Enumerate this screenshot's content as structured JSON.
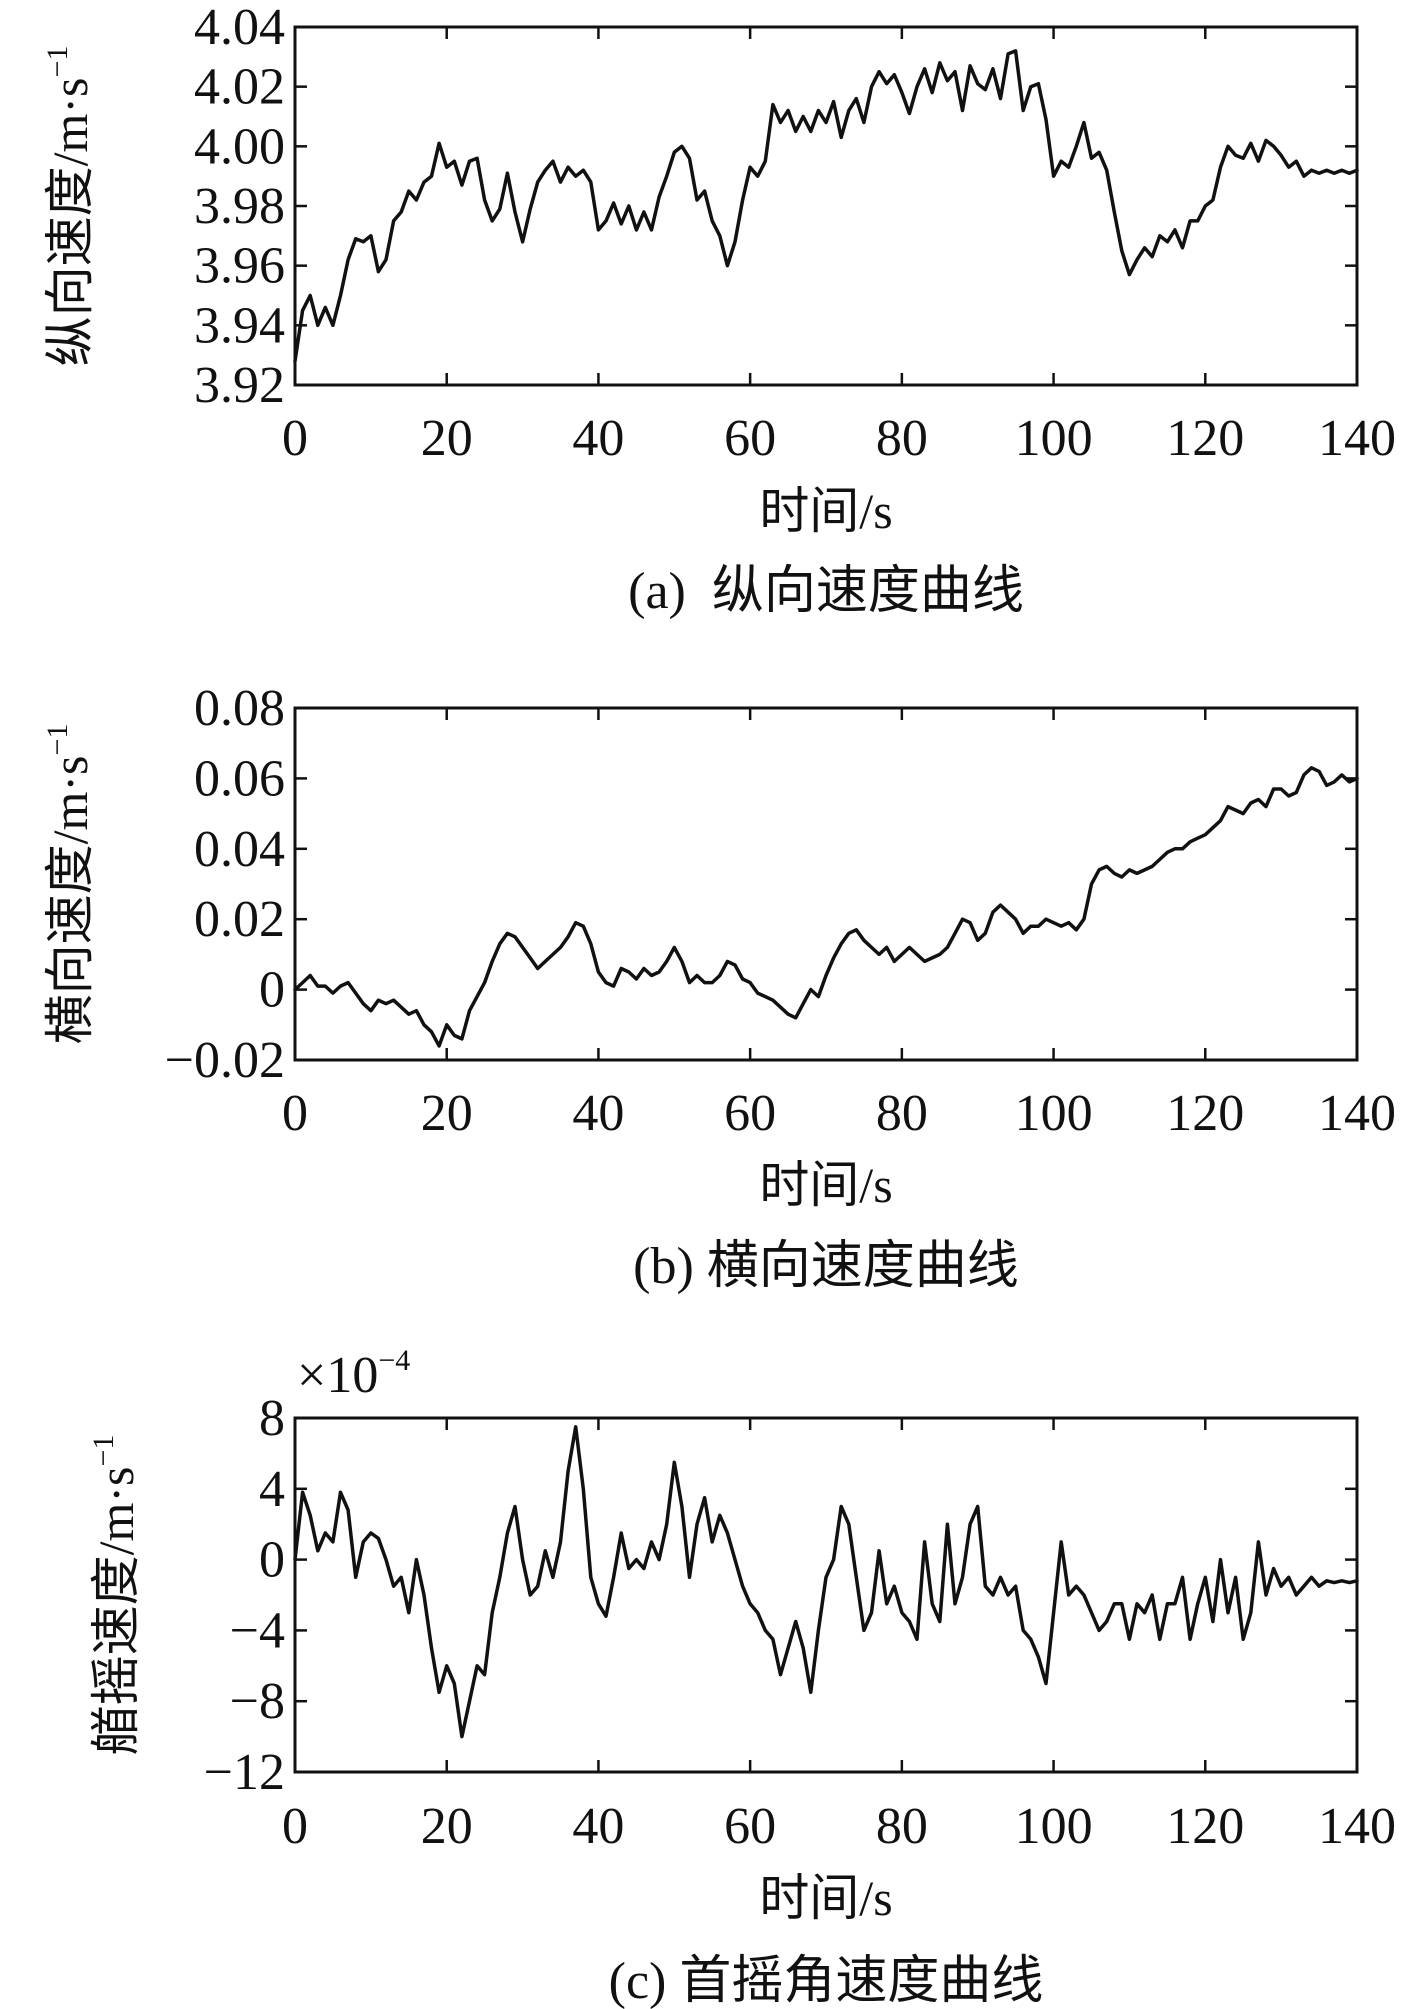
{
  "chart_data": [
    {
      "type": "line",
      "caption": "(a)  纵向速度曲线",
      "xlabel": "时间/s",
      "ylabel": "纵向速度/m·s",
      "ylabel_sup": "−1",
      "xlim": [
        0,
        140
      ],
      "ylim": [
        3.92,
        4.04
      ],
      "x_ticks": [
        0,
        20,
        40,
        60,
        80,
        100,
        120,
        140
      ],
      "x_tick_labels": [
        "0",
        "20",
        "40",
        "60",
        "80",
        "100",
        "120",
        "140"
      ],
      "y_ticks": [
        3.92,
        3.94,
        3.96,
        3.98,
        4.0,
        4.02,
        4.04
      ],
      "y_tick_labels": [
        "3.92",
        "3.94",
        "3.96",
        "3.98",
        "4.00",
        "4.02",
        "4.04"
      ],
      "series": [
        {
          "name": "纵向速度",
          "color": "#111111",
          "x": [
            0,
            1,
            2,
            3,
            4,
            5,
            6,
            7,
            8,
            9,
            10,
            11,
            12,
            13,
            14,
            15,
            16,
            17,
            18,
            19,
            20,
            21,
            22,
            23,
            24,
            25,
            26,
            27,
            28,
            29,
            30,
            31,
            32,
            33,
            34,
            35,
            36,
            37,
            38,
            39,
            40,
            41,
            42,
            43,
            44,
            45,
            46,
            47,
            48,
            49,
            50,
            51,
            52,
            53,
            54,
            55,
            56,
            57,
            58,
            59,
            60,
            61,
            62,
            63,
            64,
            65,
            66,
            67,
            68,
            69,
            70,
            71,
            72,
            73,
            74,
            75,
            76,
            77,
            78,
            79,
            80,
            81,
            82,
            83,
            84,
            85,
            86,
            87,
            88,
            89,
            90,
            91,
            92,
            93,
            94,
            95,
            96,
            97,
            98,
            99,
            100,
            101,
            102,
            103,
            104,
            105,
            106,
            107,
            108,
            109,
            110,
            111,
            112,
            113,
            114,
            115,
            116,
            117,
            118,
            119,
            120,
            121,
            122,
            123,
            124,
            125,
            126,
            127,
            128,
            129,
            130,
            131,
            132,
            133,
            134,
            135,
            136,
            137,
            138,
            139,
            140
          ],
          "values": [
            3.928,
            3.945,
            3.95,
            3.94,
            3.946,
            3.94,
            3.95,
            3.962,
            3.969,
            3.968,
            3.97,
            3.958,
            3.962,
            3.975,
            3.978,
            3.985,
            3.982,
            3.988,
            3.99,
            4.001,
            3.993,
            3.995,
            3.987,
            3.995,
            3.996,
            3.982,
            3.975,
            3.979,
            3.991,
            3.978,
            3.968,
            3.979,
            3.988,
            3.992,
            3.995,
            3.988,
            3.993,
            3.99,
            3.992,
            3.988,
            3.972,
            3.975,
            3.981,
            3.974,
            3.98,
            3.972,
            3.978,
            3.972,
            3.983,
            3.99,
            3.998,
            4.0,
            3.996,
            3.982,
            3.985,
            3.975,
            3.97,
            3.96,
            3.968,
            3.982,
            3.993,
            3.99,
            3.995,
            4.014,
            4.008,
            4.012,
            4.005,
            4.01,
            4.005,
            4.012,
            4.008,
            4.015,
            4.003,
            4.012,
            4.016,
            4.008,
            4.02,
            4.025,
            4.021,
            4.024,
            4.018,
            4.011,
            4.02,
            4.026,
            4.018,
            4.028,
            4.022,
            4.025,
            4.012,
            4.027,
            4.021,
            4.019,
            4.026,
            4.016,
            4.031,
            4.032,
            4.012,
            4.02,
            4.021,
            4.009,
            3.99,
            3.995,
            3.993,
            4.0,
            4.008,
            3.996,
            3.998,
            3.992,
            3.978,
            3.965,
            3.957,
            3.962,
            3.966,
            3.963,
            3.97,
            3.968,
            3.972,
            3.966,
            3.975,
            3.975,
            3.98,
            3.982,
            3.993,
            4.0,
            3.997,
            3.996,
            4.001,
            3.995,
            4.002,
            4.0,
            3.997,
            3.993,
            3.995,
            3.99,
            3.992,
            3.991,
            3.992,
            3.991,
            3.992,
            3.991,
            3.992
          ]
        }
      ]
    },
    {
      "type": "line",
      "caption": "(b) 横向速度曲线",
      "xlabel": "时间/s",
      "ylabel": "横向速度/m·s",
      "ylabel_sup": "−1",
      "xlim": [
        0,
        140
      ],
      "ylim": [
        -0.02,
        0.08
      ],
      "x_ticks": [
        0,
        20,
        40,
        60,
        80,
        100,
        120,
        140
      ],
      "x_tick_labels": [
        "0",
        "20",
        "40",
        "60",
        "80",
        "100",
        "120",
        "140"
      ],
      "y_ticks": [
        -0.02,
        0,
        0.02,
        0.04,
        0.06,
        0.08
      ],
      "y_tick_labels": [
        "−0.02",
        "0",
        "0.02",
        "0.04",
        "0.06",
        "0.08"
      ],
      "series": [
        {
          "name": "横向速度",
          "color": "#111111",
          "x": [
            0,
            1,
            2,
            3,
            4,
            5,
            6,
            7,
            8,
            9,
            10,
            11,
            12,
            13,
            14,
            15,
            16,
            17,
            18,
            19,
            20,
            21,
            22,
            23,
            24,
            25,
            26,
            27,
            28,
            29,
            30,
            31,
            32,
            33,
            34,
            35,
            36,
            37,
            38,
            39,
            40,
            41,
            42,
            43,
            44,
            45,
            46,
            47,
            48,
            49,
            50,
            51,
            52,
            53,
            54,
            55,
            56,
            57,
            58,
            59,
            60,
            61,
            62,
            63,
            64,
            65,
            66,
            67,
            68,
            69,
            70,
            71,
            72,
            73,
            74,
            75,
            76,
            77,
            78,
            79,
            80,
            81,
            82,
            83,
            84,
            85,
            86,
            87,
            88,
            89,
            90,
            91,
            92,
            93,
            94,
            95,
            96,
            97,
            98,
            99,
            100,
            101,
            102,
            103,
            104,
            105,
            106,
            107,
            108,
            109,
            110,
            111,
            112,
            113,
            114,
            115,
            116,
            117,
            118,
            119,
            120,
            121,
            122,
            123,
            124,
            125,
            126,
            127,
            128,
            129,
            130,
            131,
            132,
            133,
            134,
            135,
            136,
            137,
            138,
            139,
            140
          ],
          "values": [
            0.0,
            0.002,
            0.004,
            0.001,
            0.001,
            -0.001,
            0.001,
            0.002,
            -0.001,
            -0.004,
            -0.006,
            -0.003,
            -0.004,
            -0.003,
            -0.005,
            -0.007,
            -0.006,
            -0.01,
            -0.012,
            -0.016,
            -0.01,
            -0.013,
            -0.014,
            -0.006,
            -0.002,
            0.002,
            0.008,
            0.013,
            0.016,
            0.015,
            0.012,
            0.009,
            0.006,
            0.008,
            0.01,
            0.012,
            0.015,
            0.019,
            0.018,
            0.013,
            0.005,
            0.002,
            0.001,
            0.006,
            0.005,
            0.003,
            0.006,
            0.004,
            0.005,
            0.008,
            0.012,
            0.008,
            0.002,
            0.004,
            0.002,
            0.002,
            0.004,
            0.008,
            0.007,
            0.003,
            0.002,
            -0.001,
            -0.002,
            -0.003,
            -0.005,
            -0.007,
            -0.008,
            -0.004,
            0.0,
            -0.002,
            0.004,
            0.009,
            0.013,
            0.016,
            0.017,
            0.014,
            0.012,
            0.01,
            0.012,
            0.008,
            0.01,
            0.012,
            0.01,
            0.008,
            0.009,
            0.01,
            0.012,
            0.016,
            0.02,
            0.019,
            0.014,
            0.016,
            0.022,
            0.024,
            0.022,
            0.02,
            0.016,
            0.018,
            0.018,
            0.02,
            0.019,
            0.018,
            0.019,
            0.017,
            0.02,
            0.03,
            0.034,
            0.035,
            0.033,
            0.032,
            0.034,
            0.033,
            0.034,
            0.035,
            0.037,
            0.039,
            0.04,
            0.04,
            0.042,
            0.043,
            0.044,
            0.046,
            0.048,
            0.052,
            0.051,
            0.05,
            0.053,
            0.054,
            0.052,
            0.057,
            0.057,
            0.055,
            0.056,
            0.061,
            0.063,
            0.062,
            0.058,
            0.059,
            0.061,
            0.059,
            0.06
          ]
        }
      ]
    },
    {
      "type": "line",
      "caption": "(c) 首摇角速度曲线",
      "xlabel": "时间/s",
      "ylabel": "艏摇速度/m·s",
      "ylabel_sup": "−1",
      "exponent_label": "×10",
      "exponent_sup": "−4",
      "xlim": [
        0,
        140
      ],
      "ylim": [
        -12,
        8
      ],
      "x_ticks": [
        0,
        20,
        40,
        60,
        80,
        100,
        120,
        140
      ],
      "x_tick_labels": [
        "0",
        "20",
        "40",
        "60",
        "80",
        "100",
        "120",
        "140"
      ],
      "y_ticks": [
        -12,
        -8,
        -4,
        0,
        4,
        8
      ],
      "y_tick_labels": [
        "−12",
        "−8",
        "−4",
        "0",
        "4",
        "8"
      ],
      "series": [
        {
          "name": "艏摇速度",
          "color": "#111111",
          "x": [
            0,
            1,
            2,
            3,
            4,
            5,
            6,
            7,
            8,
            9,
            10,
            11,
            12,
            13,
            14,
            15,
            16,
            17,
            18,
            19,
            20,
            21,
            22,
            23,
            24,
            25,
            26,
            27,
            28,
            29,
            30,
            31,
            32,
            33,
            34,
            35,
            36,
            37,
            38,
            39,
            40,
            41,
            42,
            43,
            44,
            45,
            46,
            47,
            48,
            49,
            50,
            51,
            52,
            53,
            54,
            55,
            56,
            57,
            58,
            59,
            60,
            61,
            62,
            63,
            64,
            65,
            66,
            67,
            68,
            69,
            70,
            71,
            72,
            73,
            74,
            75,
            76,
            77,
            78,
            79,
            80,
            81,
            82,
            83,
            84,
            85,
            86,
            87,
            88,
            89,
            90,
            91,
            92,
            93,
            94,
            95,
            96,
            97,
            98,
            99,
            100,
            101,
            102,
            103,
            104,
            105,
            106,
            107,
            108,
            109,
            110,
            111,
            112,
            113,
            114,
            115,
            116,
            117,
            118,
            119,
            120,
            121,
            122,
            123,
            124,
            125,
            126,
            127,
            128,
            129,
            130,
            131,
            132,
            133,
            134,
            135,
            136,
            137,
            138,
            139,
            140
          ],
          "values": [
            0.0,
            3.8,
            2.5,
            0.5,
            1.5,
            1.0,
            3.8,
            2.8,
            -1.0,
            1.0,
            1.5,
            1.2,
            0.0,
            -1.5,
            -1.0,
            -3.0,
            0.0,
            -2.0,
            -5.0,
            -7.5,
            -6.0,
            -7.0,
            -10.0,
            -8.0,
            -6.0,
            -6.5,
            -3.0,
            -1.0,
            1.5,
            3.0,
            0.0,
            -2.0,
            -1.5,
            0.5,
            -1.0,
            1.0,
            5.0,
            7.5,
            4.0,
            -1.0,
            -2.5,
            -3.2,
            -1.0,
            1.5,
            -0.5,
            0.0,
            -0.5,
            1.0,
            0.0,
            2.0,
            5.5,
            3.0,
            -1.0,
            2.0,
            3.5,
            1.0,
            2.5,
            1.5,
            0.0,
            -1.5,
            -2.5,
            -3.0,
            -4.0,
            -4.5,
            -6.5,
            -5.0,
            -3.5,
            -5.0,
            -7.5,
            -4.0,
            -1.0,
            0.0,
            3.0,
            2.0,
            -1.0,
            -4.0,
            -3.0,
            0.5,
            -2.5,
            -1.5,
            -3.0,
            -3.5,
            -4.5,
            1.0,
            -2.5,
            -3.5,
            2.0,
            -2.5,
            -1.0,
            2.0,
            3.0,
            -1.5,
            -2.0,
            -1.0,
            -2.0,
            -1.5,
            -4.0,
            -4.5,
            -5.5,
            -7.0,
            -3.0,
            1.0,
            -2.0,
            -1.5,
            -2.0,
            -3.0,
            -4.0,
            -3.5,
            -2.5,
            -2.5,
            -4.5,
            -2.5,
            -3.0,
            -2.0,
            -4.5,
            -2.5,
            -2.5,
            -1.0,
            -4.5,
            -2.5,
            -1.0,
            -3.5,
            0.0,
            -3.0,
            -1.0,
            -4.5,
            -3.0,
            1.0,
            -2.0,
            -0.5,
            -1.5,
            -1.0,
            -2.0,
            -1.5,
            -1.0,
            -1.5,
            -1.2,
            -1.3,
            -1.2,
            -1.3,
            -1.2
          ]
        }
      ]
    }
  ]
}
